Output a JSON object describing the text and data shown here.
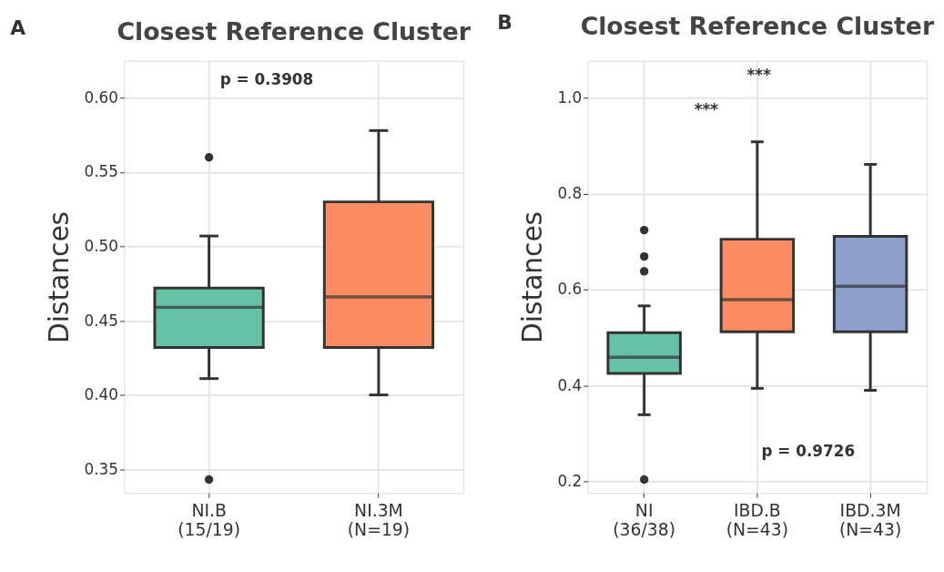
{
  "chart_data": [
    {
      "type": "box",
      "title": "Closest Reference Cluster",
      "ylabel": "Distances",
      "categories": [
        "NI.B\n(15/19)",
        "NI.3M\n(N=19)"
      ],
      "colors": [
        "#66c2a5",
        "#fc8d62"
      ],
      "boxes": [
        {
          "low": 0.411,
          "q1": 0.432,
          "median": 0.459,
          "q3": 0.472,
          "high": 0.507,
          "outliers": [
            0.56,
            0.343
          ]
        },
        {
          "low": 0.4,
          "q1": 0.432,
          "median": 0.466,
          "q3": 0.53,
          "high": 0.578
        }
      ],
      "ylim": [
        0.334,
        0.625
      ],
      "yticks": [
        {
          "value": 0.35,
          "label": "0.35"
        },
        {
          "value": 0.4,
          "label": "0.40"
        },
        {
          "value": 0.45,
          "label": "0.45"
        },
        {
          "value": 0.5,
          "label": "0.50"
        },
        {
          "value": 0.55,
          "label": "0.55"
        },
        {
          "value": 0.6,
          "label": "0.60"
        }
      ],
      "grid": true,
      "annotations": [
        "A",
        "p = 0.3908"
      ]
    },
    {
      "type": "box",
      "title": "Closest Reference Cluster",
      "ylabel": "Distances",
      "categories": [
        "NI\n(36/38)",
        "IBD.B\n(N=43)",
        "IBD.3M\n(N=43)"
      ],
      "colors": [
        "#66c2a5",
        "#fc8d62",
        "#8da0cb"
      ],
      "boxes": [
        {
          "low": 0.339,
          "q1": 0.425,
          "median": 0.459,
          "q3": 0.51,
          "high": 0.566,
          "outliers": [
            0.724,
            0.669,
            0.638,
            0.204
          ]
        },
        {
          "low": 0.394,
          "q1": 0.512,
          "median": 0.579,
          "q3": 0.705,
          "high": 0.908
        },
        {
          "low": 0.39,
          "q1": 0.512,
          "median": 0.607,
          "q3": 0.711,
          "high": 0.861
        }
      ],
      "ylim": [
        0.176,
        1.077
      ],
      "yticks": [
        0.2,
        0.4,
        0.6,
        0.8,
        {
          "value": 1,
          "label": "1.0"
        }
      ],
      "grid": true,
      "annotations": [
        "B",
        "***",
        "***",
        "p = 0.9726"
      ]
    }
  ]
}
